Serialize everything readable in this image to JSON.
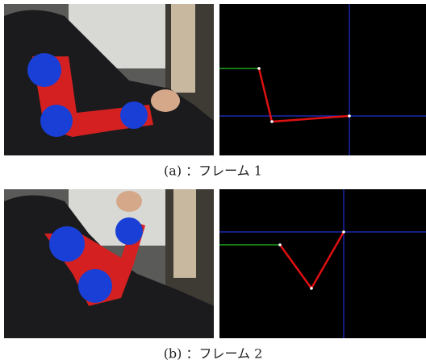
{
  "figures": [
    {
      "caption": "(a) ：フレーム 1"
    },
    {
      "caption": "(b) ：フレーム 2"
    }
  ]
}
